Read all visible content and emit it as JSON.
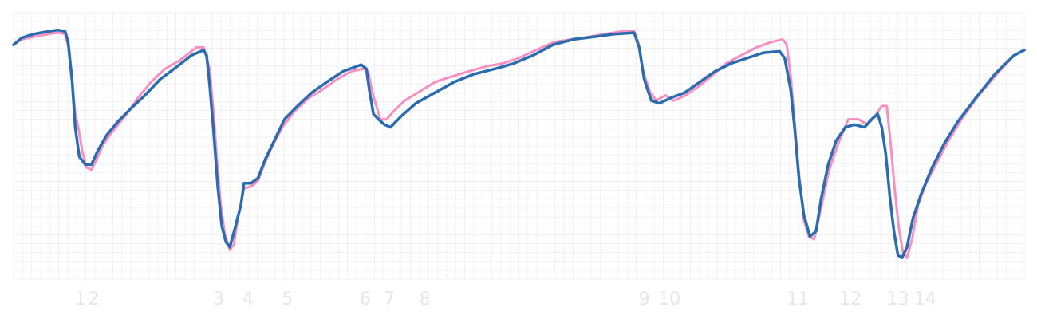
{
  "chart_data": {
    "type": "line",
    "title": "",
    "xlabel": "",
    "ylabel": "",
    "xlim": [
      0,
      100
    ],
    "ylim": [
      0,
      100
    ],
    "grid": true,
    "legend": "none",
    "x_ticks": [
      {
        "label": "1",
        "x": 6.6
      },
      {
        "label": "2",
        "x": 7.9
      },
      {
        "label": "3",
        "x": 20.3
      },
      {
        "label": "4",
        "x": 23.2
      },
      {
        "label": "5",
        "x": 27.1
      },
      {
        "label": "6",
        "x": 34.8
      },
      {
        "label": "7",
        "x": 37.2
      },
      {
        "label": "8",
        "x": 40.7
      },
      {
        "label": "9",
        "x": 62.4
      },
      {
        "label": "10",
        "x": 64.9
      },
      {
        "label": "11",
        "x": 77.6
      },
      {
        "label": "12",
        "x": 82.8
      },
      {
        "label": "13",
        "x": 87.5
      },
      {
        "label": "14",
        "x": 90.2
      }
    ],
    "series": [
      {
        "color": "#f78fc0",
        "points": [
          [
            0,
            88
          ],
          [
            0.8,
            90
          ],
          [
            2,
            91
          ],
          [
            3.5,
            92
          ],
          [
            4.4,
            92.5
          ],
          [
            5.1,
            92
          ],
          [
            5.5,
            86
          ],
          [
            5.8,
            75
          ],
          [
            6.1,
            62
          ],
          [
            6.4,
            57
          ],
          [
            6.8,
            48
          ],
          [
            7.2,
            42
          ],
          [
            7.7,
            41
          ],
          [
            8.1,
            44
          ],
          [
            8.8,
            50
          ],
          [
            9.7,
            55
          ],
          [
            11,
            61
          ],
          [
            12.3,
            68
          ],
          [
            13.6,
            74
          ],
          [
            15,
            79
          ],
          [
            16.4,
            82
          ],
          [
            18.1,
            87
          ],
          [
            18.8,
            87
          ],
          [
            19.4,
            79
          ],
          [
            19.8,
            62
          ],
          [
            20.1,
            46
          ],
          [
            20.5,
            28
          ],
          [
            20.9,
            17
          ],
          [
            21.4,
            11
          ],
          [
            21.8,
            13
          ],
          [
            22.2,
            23
          ],
          [
            22.8,
            34
          ],
          [
            23.6,
            35
          ],
          [
            24.2,
            37
          ],
          [
            24.8,
            43
          ],
          [
            25.6,
            50
          ],
          [
            26.6,
            57
          ],
          [
            27.8,
            63
          ],
          [
            29.2,
            68
          ],
          [
            30.5,
            71
          ],
          [
            32,
            75
          ],
          [
            33.4,
            78
          ],
          [
            34.6,
            79
          ],
          [
            35.1,
            78
          ],
          [
            35.4,
            72
          ],
          [
            35.8,
            66
          ],
          [
            36.3,
            60
          ],
          [
            36.9,
            60
          ],
          [
            37.6,
            63
          ],
          [
            38.7,
            67
          ],
          [
            40,
            70
          ],
          [
            41.7,
            74
          ],
          [
            43.3,
            76
          ],
          [
            45,
            78
          ],
          [
            46.9,
            80
          ],
          [
            48.4,
            81
          ],
          [
            50,
            83
          ],
          [
            51.7,
            86
          ],
          [
            53.5,
            89
          ],
          [
            55.2,
            90
          ],
          [
            57,
            91
          ],
          [
            58.5,
            92
          ],
          [
            60.2,
            93
          ],
          [
            61.4,
            93
          ],
          [
            61.8,
            89
          ],
          [
            62.3,
            78
          ],
          [
            63,
            70
          ],
          [
            63.6,
            67
          ],
          [
            64.5,
            69
          ],
          [
            65.3,
            67
          ],
          [
            66.5,
            69
          ],
          [
            68,
            73
          ],
          [
            69.3,
            77
          ],
          [
            70.5,
            81
          ],
          [
            72,
            84
          ],
          [
            73.5,
            87
          ],
          [
            75,
            89
          ],
          [
            76.1,
            90
          ],
          [
            76.5,
            88
          ],
          [
            76.9,
            76
          ],
          [
            77.3,
            58
          ],
          [
            77.7,
            40
          ],
          [
            78.2,
            22
          ],
          [
            78.7,
            16
          ],
          [
            79.2,
            15
          ],
          [
            79.8,
            25
          ],
          [
            80.7,
            41
          ],
          [
            81.6,
            51
          ],
          [
            82.6,
            60
          ],
          [
            83.6,
            60
          ],
          [
            84.5,
            58
          ],
          [
            85.2,
            61
          ],
          [
            85.9,
            65
          ],
          [
            86.4,
            65
          ],
          [
            86.8,
            50
          ],
          [
            87.2,
            33
          ],
          [
            87.6,
            19
          ],
          [
            88,
            10
          ],
          [
            88.4,
            8
          ],
          [
            88.9,
            15
          ],
          [
            89.5,
            28
          ],
          [
            90.3,
            36
          ],
          [
            91.4,
            44
          ],
          [
            92.5,
            52
          ],
          [
            93.8,
            60
          ],
          [
            95.5,
            69
          ],
          [
            97.3,
            77
          ],
          [
            99,
            84
          ],
          [
            100,
            86
          ]
        ]
      },
      {
        "color": "#2b6cb0",
        "points": [
          [
            0,
            88
          ],
          [
            0.8,
            90.5
          ],
          [
            2,
            92
          ],
          [
            3.5,
            93
          ],
          [
            4.4,
            93.5
          ],
          [
            5.1,
            93
          ],
          [
            5.4,
            89
          ],
          [
            5.8,
            74
          ],
          [
            6.1,
            57
          ],
          [
            6.5,
            46
          ],
          [
            7.1,
            43
          ],
          [
            7.7,
            43
          ],
          [
            8.3,
            48
          ],
          [
            9.2,
            54
          ],
          [
            10.3,
            59
          ],
          [
            11.6,
            64
          ],
          [
            13,
            69
          ],
          [
            14.5,
            75
          ],
          [
            15.9,
            79
          ],
          [
            17.6,
            84
          ],
          [
            18.8,
            86
          ],
          [
            19.1,
            84
          ],
          [
            19.4,
            73
          ],
          [
            19.8,
            55
          ],
          [
            20.2,
            35
          ],
          [
            20.6,
            20
          ],
          [
            21,
            14
          ],
          [
            21.4,
            12
          ],
          [
            21.9,
            19
          ],
          [
            22.5,
            28
          ],
          [
            22.8,
            36
          ],
          [
            23.5,
            36
          ],
          [
            24.2,
            38
          ],
          [
            24.9,
            45
          ],
          [
            25.8,
            52
          ],
          [
            26.8,
            60
          ],
          [
            28.1,
            65
          ],
          [
            29.5,
            70
          ],
          [
            31,
            74
          ],
          [
            32.6,
            78
          ],
          [
            34.4,
            80.5
          ],
          [
            34.9,
            79
          ],
          [
            35.2,
            71
          ],
          [
            35.6,
            62
          ],
          [
            36.1,
            60
          ],
          [
            36.7,
            58
          ],
          [
            37.3,
            57
          ],
          [
            38.3,
            61
          ],
          [
            39.8,
            66
          ],
          [
            41.7,
            70
          ],
          [
            43.6,
            74
          ],
          [
            45.6,
            77
          ],
          [
            47.7,
            79
          ],
          [
            49.5,
            81
          ],
          [
            51.4,
            84
          ],
          [
            53.4,
            88
          ],
          [
            55.4,
            90
          ],
          [
            57.5,
            91
          ],
          [
            59.5,
            92
          ],
          [
            61.4,
            92.5
          ],
          [
            61.9,
            87
          ],
          [
            62.4,
            75
          ],
          [
            63.1,
            67
          ],
          [
            63.9,
            66
          ],
          [
            65,
            68
          ],
          [
            66.4,
            70
          ],
          [
            67.9,
            74
          ],
          [
            69.4,
            78
          ],
          [
            71,
            81
          ],
          [
            72.6,
            83
          ],
          [
            74.2,
            85
          ],
          [
            75.8,
            85.5
          ],
          [
            76.3,
            83
          ],
          [
            76.9,
            71
          ],
          [
            77.3,
            56
          ],
          [
            77.7,
            38
          ],
          [
            78.2,
            24
          ],
          [
            78.8,
            16
          ],
          [
            79.4,
            18
          ],
          [
            79.9,
            30
          ],
          [
            80.6,
            43
          ],
          [
            81.4,
            52
          ],
          [
            82.3,
            57
          ],
          [
            83.2,
            58
          ],
          [
            84.2,
            57
          ],
          [
            84.9,
            60
          ],
          [
            85.5,
            62
          ],
          [
            85.9,
            57
          ],
          [
            86.3,
            47
          ],
          [
            86.7,
            31
          ],
          [
            87.1,
            18
          ],
          [
            87.5,
            9
          ],
          [
            87.9,
            8
          ],
          [
            88.4,
            12
          ],
          [
            89,
            23
          ],
          [
            89.8,
            32
          ],
          [
            90.9,
            42
          ],
          [
            92.1,
            51
          ],
          [
            93.4,
            59
          ],
          [
            95.2,
            68
          ],
          [
            97.1,
            77
          ],
          [
            99,
            84
          ],
          [
            100,
            86
          ]
        ]
      }
    ]
  }
}
